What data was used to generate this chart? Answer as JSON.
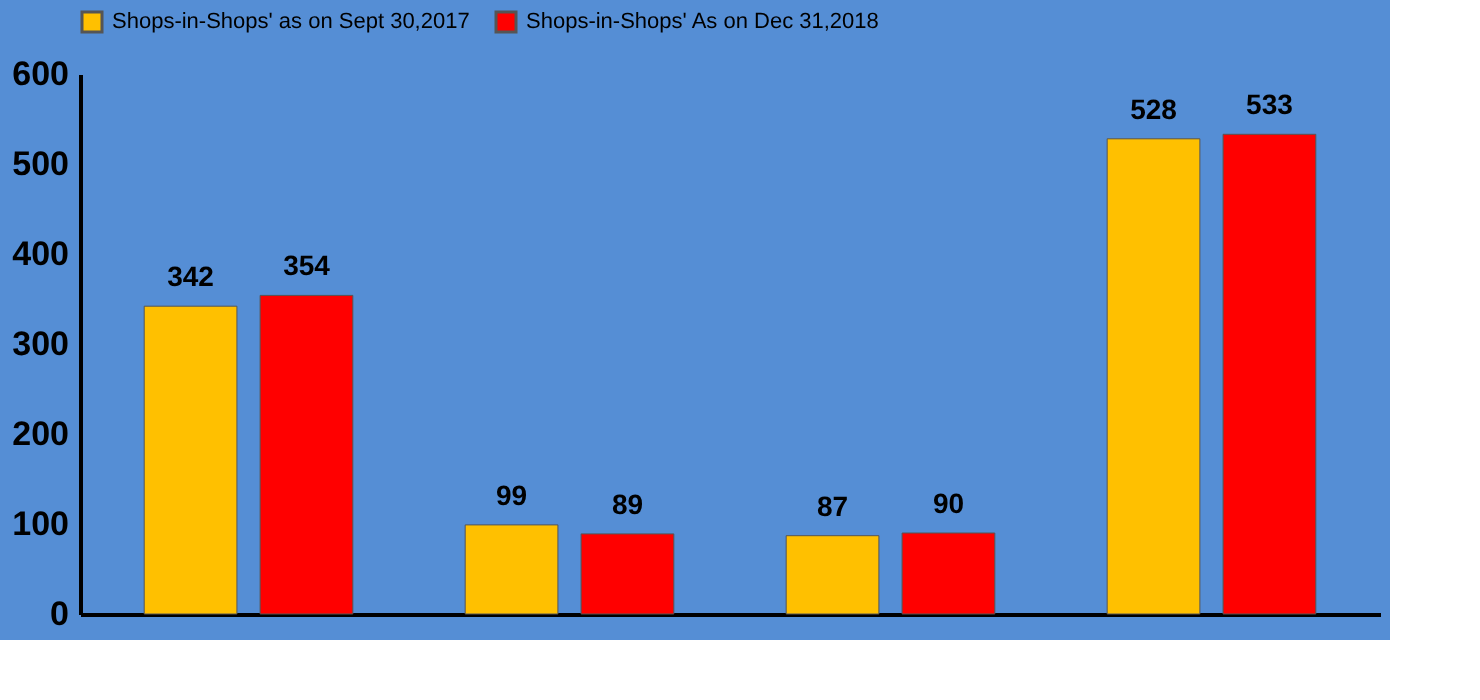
{
  "chart_data": {
    "type": "bar",
    "categories": [
      null,
      null,
      null,
      null
    ],
    "series": [
      {
        "name": "Shops-in-Shops' as on Sept 30,2017",
        "color": "#ffc000",
        "values": [
          342,
          99,
          87,
          528
        ]
      },
      {
        "name": "Shops-in-Shops' As on Dec 31,2018",
        "color": "#ff0000",
        "values": [
          354,
          89,
          90,
          533
        ]
      }
    ],
    "ylim": [
      0,
      600
    ],
    "yticks": [
      0,
      100,
      200,
      300,
      400,
      500,
      600
    ],
    "data_labels": true,
    "grid": false,
    "legend": "top",
    "tick_labels": "y"
  }
}
